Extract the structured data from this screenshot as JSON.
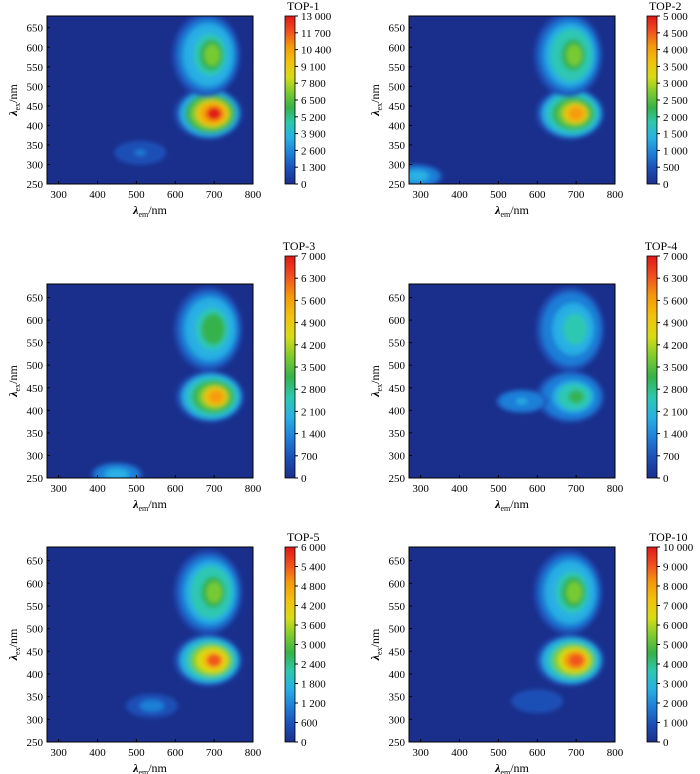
{
  "figure": {
    "colormap": [
      "#1a2f8c",
      "#1c4fb6",
      "#1f7fd8",
      "#29b0e4",
      "#2dc8b0",
      "#36b24a",
      "#7ccb2e",
      "#d8dc16",
      "#f2c20d",
      "#f59a0a",
      "#f0501e",
      "#e01818"
    ],
    "background_color": "#1a2f8c"
  },
  "chart_data": [
    {
      "type": "heatmap",
      "title": "TOP-1",
      "xlabel": "λ_em/nm",
      "ylabel": "λ_ex/nm",
      "xlim": [
        270,
        800
      ],
      "ylim": [
        250,
        680
      ],
      "x_ticks": [
        300,
        400,
        500,
        600,
        700,
        800
      ],
      "y_ticks": [
        250,
        300,
        350,
        400,
        450,
        500,
        550,
        600,
        650
      ],
      "colorbar": {
        "min": 0,
        "max": 13000,
        "tick_labels": [
          "13 000",
          "11 700",
          "10 400",
          "9 100",
          "7 800",
          "6 500",
          "5 200",
          "3 900",
          "2 600",
          "1 300",
          "0"
        ]
      },
      "peaks": [
        {
          "em": 700,
          "ex": 430,
          "intensity": 13000
        },
        {
          "em": 695,
          "ex": 580,
          "intensity": 6500
        },
        {
          "em": 510,
          "ex": 330,
          "intensity": 1800
        }
      ]
    },
    {
      "type": "heatmap",
      "title": "TOP-2",
      "xlabel": "λ_em/nm",
      "ylabel": "λ_ex/nm",
      "xlim": [
        270,
        800
      ],
      "ylim": [
        250,
        680
      ],
      "x_ticks": [
        300,
        400,
        500,
        600,
        700,
        800
      ],
      "y_ticks": [
        250,
        300,
        350,
        400,
        450,
        500,
        550,
        600,
        650
      ],
      "colorbar": {
        "min": 0,
        "max": 5000,
        "tick_labels": [
          "5 000",
          "4 500",
          "4 000",
          "3 500",
          "3 000",
          "2 500",
          "2 000",
          "1 500",
          "1 000",
          "500",
          "0"
        ]
      },
      "peaks": [
        {
          "em": 700,
          "ex": 430,
          "intensity": 4000
        },
        {
          "em": 695,
          "ex": 580,
          "intensity": 2700
        },
        {
          "em": 290,
          "ex": 270,
          "intensity": 1500
        }
      ]
    },
    {
      "type": "heatmap",
      "title": "TOP-3",
      "xlabel": "λ_em/nm",
      "ylabel": "λ_ex/nm",
      "xlim": [
        270,
        800
      ],
      "ylim": [
        250,
        680
      ],
      "x_ticks": [
        300,
        400,
        500,
        600,
        700,
        800
      ],
      "y_ticks": [
        250,
        300,
        350,
        400,
        450,
        500,
        550,
        600,
        650
      ],
      "colorbar": {
        "min": 0,
        "max": 7000,
        "tick_labels": [
          "7 000",
          "6 300",
          "5 600",
          "4 900",
          "4 200",
          "3 500",
          "2 800",
          "2 100",
          "1 400",
          "700",
          "0"
        ]
      },
      "peaks": [
        {
          "em": 705,
          "ex": 430,
          "intensity": 5600
        },
        {
          "em": 700,
          "ex": 580,
          "intensity": 3300
        },
        {
          "em": 450,
          "ex": 258,
          "intensity": 2100
        }
      ]
    },
    {
      "type": "heatmap",
      "title": "TOP-4",
      "xlabel": "λ_em/nm",
      "ylabel": "λ_ex/nm",
      "xlim": [
        270,
        800
      ],
      "ylim": [
        250,
        680
      ],
      "x_ticks": [
        300,
        400,
        500,
        600,
        700,
        800
      ],
      "y_ticks": [
        250,
        300,
        350,
        400,
        450,
        500,
        550,
        600,
        650
      ],
      "colorbar": {
        "min": 0,
        "max": 7000,
        "tick_labels": [
          "7 000",
          "6 300",
          "5 600",
          "4 900",
          "4 200",
          "3 500",
          "2 800",
          "2 100",
          "1 400",
          "700",
          "0"
        ]
      },
      "peaks": [
        {
          "em": 700,
          "ex": 430,
          "intensity": 3000
        },
        {
          "em": 700,
          "ex": 580,
          "intensity": 2800
        },
        {
          "em": 560,
          "ex": 420,
          "intensity": 1700
        }
      ]
    },
    {
      "type": "heatmap",
      "title": "TOP-5",
      "xlabel": "λ_em/nm",
      "ylabel": "λ_ex/nm",
      "xlim": [
        270,
        800
      ],
      "ylim": [
        250,
        680
      ],
      "x_ticks": [
        300,
        400,
        500,
        600,
        700,
        800
      ],
      "y_ticks": [
        250,
        300,
        350,
        400,
        450,
        500,
        550,
        600,
        650
      ],
      "colorbar": {
        "min": 0,
        "max": 6000,
        "tick_labels": [
          "6 000",
          "5 400",
          "4 800",
          "4 200",
          "3 600",
          "3 000",
          "2 400",
          "1 800",
          "1 200",
          "600",
          "0"
        ]
      },
      "peaks": [
        {
          "em": 700,
          "ex": 430,
          "intensity": 5400
        },
        {
          "em": 700,
          "ex": 580,
          "intensity": 3200
        },
        {
          "em": 540,
          "ex": 330,
          "intensity": 900
        }
      ]
    },
    {
      "type": "heatmap",
      "title": "TOP-10",
      "xlabel": "λ_em/nm",
      "ylabel": "λ_ex/nm",
      "xlim": [
        270,
        800
      ],
      "ylim": [
        250,
        680
      ],
      "x_ticks": [
        300,
        400,
        500,
        600,
        700,
        800
      ],
      "y_ticks": [
        250,
        300,
        350,
        400,
        450,
        500,
        550,
        600,
        650
      ],
      "colorbar": {
        "min": 0,
        "max": 10000,
        "tick_labels": [
          "10 000",
          "9 000",
          "8 000",
          "7 000",
          "6 000",
          "5 000",
          "4 000",
          "3 000",
          "2 000",
          "1 000",
          "0"
        ]
      },
      "peaks": [
        {
          "em": 700,
          "ex": 430,
          "intensity": 9500
        },
        {
          "em": 695,
          "ex": 580,
          "intensity": 5000
        },
        {
          "em": 600,
          "ex": 340,
          "intensity": 600
        }
      ]
    }
  ]
}
